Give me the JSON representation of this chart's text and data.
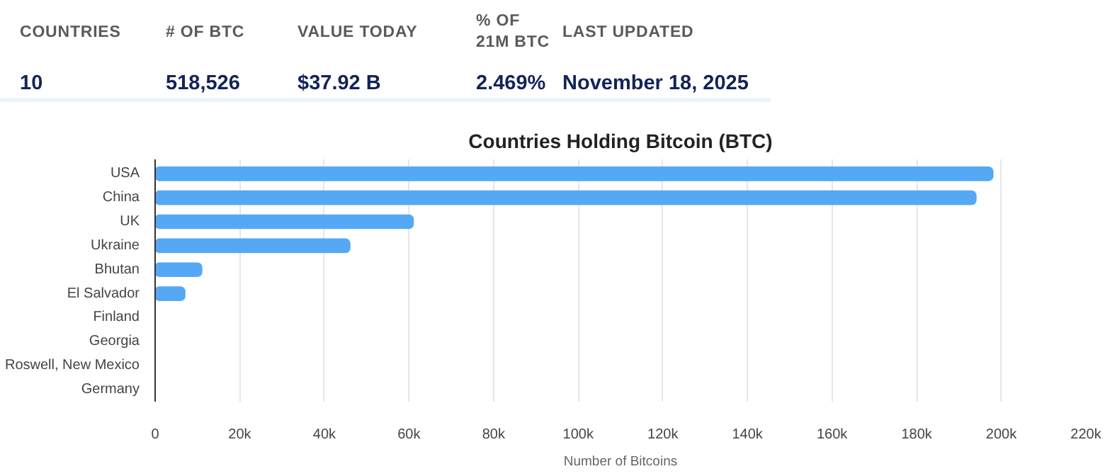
{
  "chart_data": [
    {
      "type": "other",
      "categories": [
        "COUNTRIES",
        "# OF BTC",
        "VALUE TODAY",
        "% OF 21M BTC",
        "LAST UPDATED"
      ],
      "value_labels": [
        "10",
        "518,526",
        "$37.92 B",
        "2.469%",
        "November 18, 2025"
      ]
    },
    {
      "type": "bar",
      "orientation": "horizontal",
      "title": "Countries Holding Bitcoin (BTC)",
      "xlabel": "Number of Bitcoins",
      "categories": [
        "USA",
        "China",
        "UK",
        "Ukraine",
        "Bhutan",
        "El Salvador",
        "Finland",
        "Georgia",
        "Roswell, New Mexico",
        "Germany"
      ],
      "values": [
        198000,
        194000,
        61000,
        46000,
        11000,
        7000,
        0,
        0,
        0,
        0
      ],
      "color": "#55a9f4",
      "xlim": [
        0,
        220000
      ],
      "xticks": [
        {
          "value": 0,
          "label": "0"
        },
        {
          "value": 20000,
          "label": "20k"
        },
        {
          "value": 40000,
          "label": "40k"
        },
        {
          "value": 60000,
          "label": "60k"
        },
        {
          "value": 80000,
          "label": "80k"
        },
        {
          "value": 100000,
          "label": "100k"
        },
        {
          "value": 120000,
          "label": "120k"
        },
        {
          "value": 140000,
          "label": "140k"
        },
        {
          "value": 160000,
          "label": "160k"
        },
        {
          "value": 180000,
          "label": "180k"
        },
        {
          "value": 200000,
          "label": "200k"
        },
        {
          "value": 220000,
          "label": "220k"
        }
      ],
      "grid": "x"
    }
  ]
}
